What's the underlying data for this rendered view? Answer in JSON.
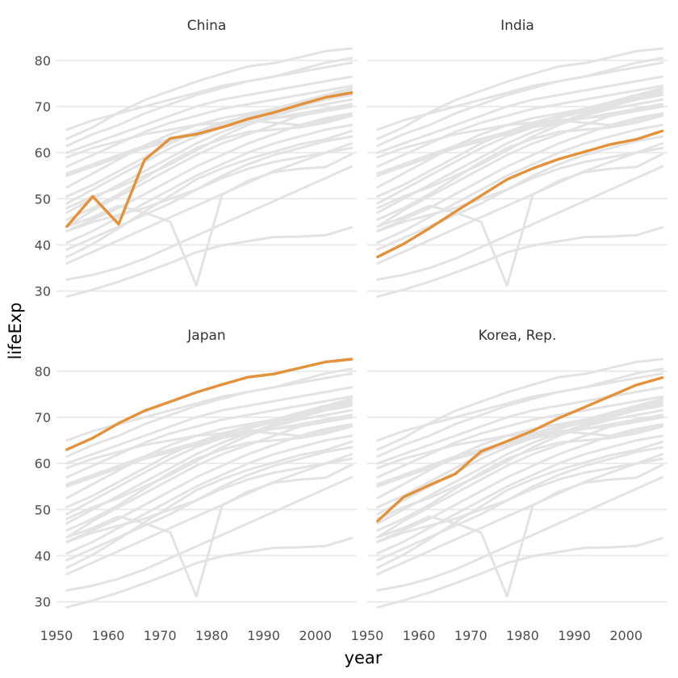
{
  "chart_data": {
    "type": "line",
    "layout": "facet 2x2",
    "xlabel": "year",
    "ylabel": "lifeExp",
    "x": [
      1952,
      1957,
      1962,
      1967,
      1972,
      1977,
      1982,
      1987,
      1992,
      1997,
      2002,
      2007
    ],
    "xlim": [
      1950,
      2008
    ],
    "ylim": [
      28,
      84
    ],
    "x_ticks": [
      1950,
      1960,
      1970,
      1980,
      1990,
      2000
    ],
    "y_ticks": [
      30,
      40,
      50,
      60,
      70,
      80
    ],
    "grid": true,
    "highlight_color": "#e3913a",
    "background_color": "#e3e3e3",
    "panels": [
      {
        "title": "China",
        "values": [
          44.0,
          50.5,
          44.5,
          58.4,
          63.1,
          64.0,
          65.5,
          67.3,
          68.7,
          70.4,
          72.0,
          73.0
        ]
      },
      {
        "title": "India",
        "values": [
          37.4,
          40.2,
          43.6,
          47.2,
          50.7,
          54.2,
          56.6,
          58.6,
          60.2,
          61.8,
          62.9,
          64.7
        ]
      },
      {
        "title": "Japan",
        "values": [
          63.0,
          65.5,
          68.7,
          71.4,
          73.4,
          75.4,
          77.1,
          78.7,
          79.4,
          80.7,
          82.0,
          82.6
        ]
      },
      {
        "title": "Korea, Rep.",
        "values": [
          47.5,
          52.7,
          55.3,
          57.7,
          62.6,
          64.8,
          67.1,
          69.8,
          72.2,
          74.6,
          77.0,
          78.6
        ]
      }
    ],
    "background_series": [
      [
        28.8,
        30.3,
        32.0,
        34.0,
        36.1,
        38.4,
        39.9,
        40.8,
        41.7,
        41.8,
        42.1,
        43.8
      ],
      [
        32.5,
        33.5,
        35.0,
        37.0,
        39.5,
        42.0,
        44.5,
        47.0,
        49.5,
        52.0,
        54.5,
        57.0
      ],
      [
        36.0,
        38.5,
        41.0,
        43.5,
        46.0,
        48.5,
        51.0,
        53.5,
        56.0,
        58.0,
        60.0,
        62.0
      ],
      [
        37.4,
        40.2,
        43.6,
        47.2,
        50.7,
        54.2,
        56.6,
        58.6,
        60.2,
        61.8,
        62.9,
        64.7
      ],
      [
        39.0,
        41.5,
        44.0,
        46.5,
        49.0,
        52.0,
        55.0,
        57.5,
        59.5,
        61.0,
        62.5,
        63.5
      ],
      [
        40.5,
        43.0,
        46.0,
        49.0,
        52.0,
        55.0,
        57.5,
        60.0,
        62.0,
        63.5,
        65.0,
        66.0
      ],
      [
        43.0,
        45.5,
        48.0,
        51.0,
        54.0,
        57.0,
        59.5,
        62.0,
        64.0,
        66.0,
        67.5,
        68.5
      ],
      [
        44.0,
        46.0,
        48.5,
        47.0,
        45.0,
        31.2,
        50.9,
        53.9,
        55.8,
        56.5,
        56.9,
        59.7
      ],
      [
        44.0,
        47.5,
        50.5,
        53.5,
        56.5,
        59.5,
        62.0,
        64.0,
        66.0,
        68.0,
        69.5,
        70.5
      ],
      [
        45.5,
        48.0,
        51.0,
        54.5,
        58.0,
        61.0,
        63.0,
        64.5,
        65.0,
        65.5,
        66.5,
        68.0
      ],
      [
        47.0,
        50.0,
        53.0,
        56.0,
        59.0,
        62.0,
        64.5,
        66.5,
        68.5,
        70.0,
        71.5,
        72.5
      ],
      [
        48.0,
        50.5,
        52.5,
        55.0,
        57.5,
        60.5,
        63.5,
        66.0,
        68.0,
        69.5,
        70.5,
        71.5
      ],
      [
        49.0,
        52.0,
        55.0,
        58.0,
        61.0,
        63.5,
        65.5,
        67.5,
        69.0,
        70.5,
        72.0,
        73.0
      ],
      [
        50.5,
        53.0,
        56.0,
        59.0,
        62.0,
        64.5,
        66.5,
        68.0,
        69.5,
        71.0,
        72.5,
        73.5
      ],
      [
        43.0,
        45.0,
        46.5,
        48.0,
        50.0,
        52.0,
        54.5,
        56.5,
        58.0,
        59.0,
        60.0,
        61.0
      ],
      [
        52.5,
        55.5,
        58.5,
        61.5,
        64.0,
        66.0,
        67.5,
        68.5,
        69.5,
        71.0,
        72.5,
        74.0
      ],
      [
        55.5,
        57.5,
        59.5,
        61.5,
        63.0,
        64.5,
        66.0,
        67.0,
        67.5,
        68.0,
        69.0,
        70.0
      ],
      [
        57.0,
        59.5,
        62.0,
        64.5,
        66.5,
        68.0,
        69.5,
        70.5,
        71.5,
        72.5,
        73.5,
        74.5
      ],
      [
        59.0,
        61.0,
        62.5,
        64.0,
        65.0,
        66.0,
        66.5,
        67.0,
        66.5,
        66.0,
        67.0,
        68.0
      ],
      [
        60.0,
        62.0,
        64.0,
        66.0,
        68.0,
        70.0,
        71.5,
        72.5,
        73.5,
        74.5,
        75.5,
        76.5
      ],
      [
        61.5,
        64.0,
        66.0,
        68.5,
        70.5,
        72.5,
        74.0,
        75.5,
        76.5,
        77.5,
        78.5,
        79.5
      ],
      [
        63.0,
        65.5,
        68.7,
        71.4,
        73.4,
        75.4,
        77.1,
        78.7,
        79.4,
        80.7,
        82.0,
        82.6
      ],
      [
        65.0,
        67.0,
        68.5,
        70.0,
        71.5,
        73.0,
        74.5,
        75.5,
        76.5,
        78.0,
        79.5,
        80.5
      ],
      [
        55.0,
        57.0,
        59.0,
        61.0,
        62.5,
        64.0,
        65.5,
        66.5,
        67.5,
        68.5,
        69.5,
        70.5
      ]
    ]
  }
}
